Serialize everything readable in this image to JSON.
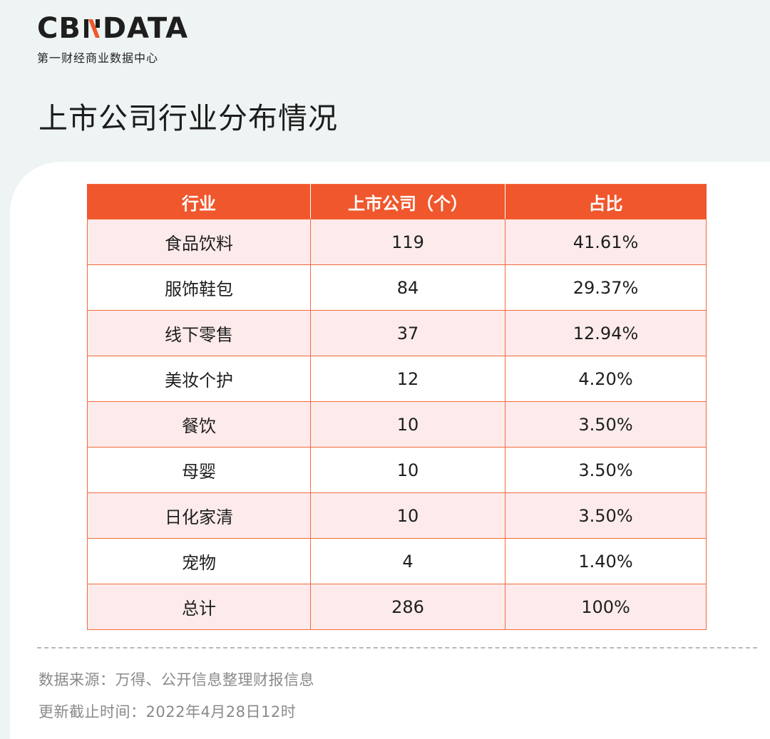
{
  "brand": {
    "name_left": "CB",
    "name_right": "DATA",
    "subtitle": "第一财经商业数据中心",
    "accent_color": "#f0572c"
  },
  "title": "上市公司行业分布情况",
  "table": {
    "headers": [
      "行业",
      "上市公司（个）",
      "占比"
    ],
    "rows": [
      {
        "industry": "食品饮料",
        "count": "119",
        "share": "41.61%"
      },
      {
        "industry": "服饰鞋包",
        "count": "84",
        "share": "29.37%"
      },
      {
        "industry": "线下零售",
        "count": "37",
        "share": "12.94%"
      },
      {
        "industry": "美妆个护",
        "count": "12",
        "share": "4.20%"
      },
      {
        "industry": "餐饮",
        "count": "10",
        "share": "3.50%"
      },
      {
        "industry": "母婴",
        "count": "10",
        "share": "3.50%"
      },
      {
        "industry": "日化家清",
        "count": "10",
        "share": "3.50%"
      },
      {
        "industry": "宠物",
        "count": "4",
        "share": "1.40%"
      },
      {
        "industry": "总计",
        "count": "286",
        "share": "100%"
      }
    ]
  },
  "footer": {
    "source": "数据来源：万得、公开信息整理财报信息",
    "updated": "更新截止时间：2022年4月28日12时"
  }
}
